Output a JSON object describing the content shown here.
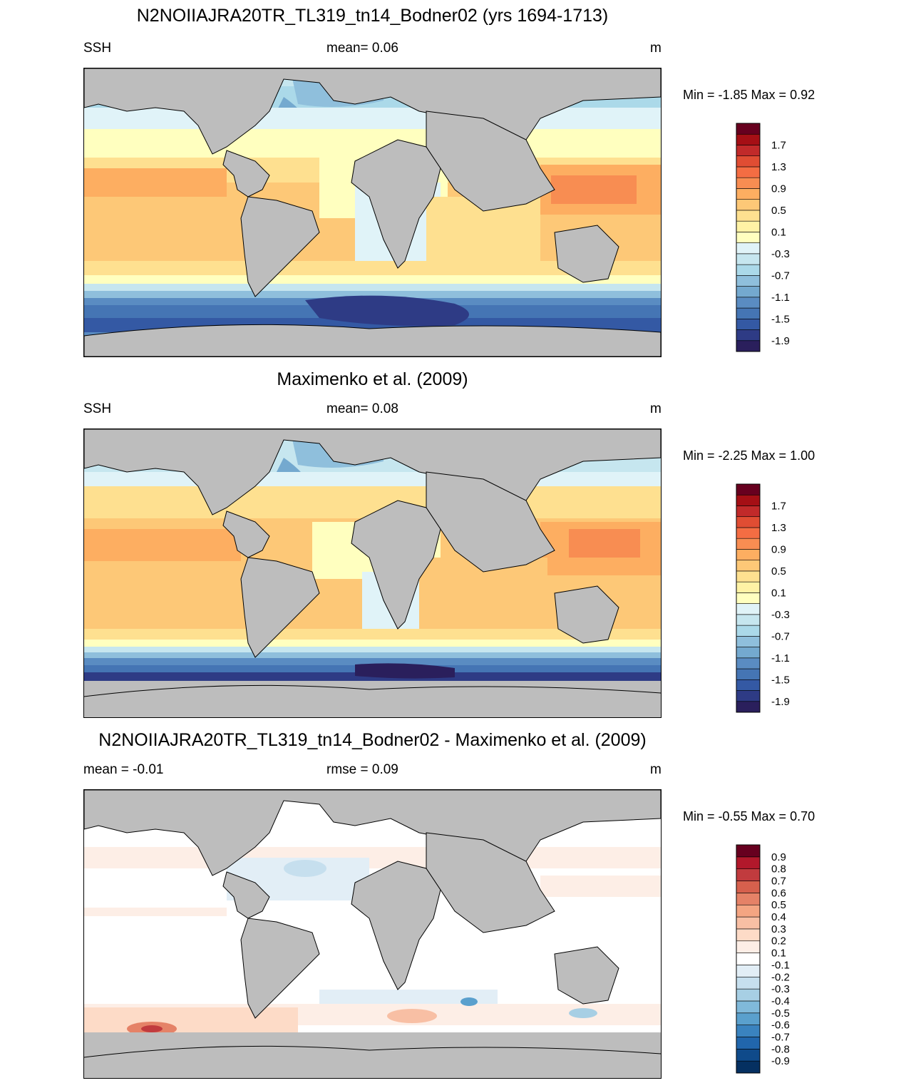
{
  "chart_data": [
    {
      "type": "heatmap",
      "title": "N2NOIIAJRA20TR_TL319_tn14_Bodner02 (yrs 1694-1713)",
      "left_label": "SSH",
      "center_label": "mean=   0.06",
      "right_label": "m",
      "min_max": "Min =  -1.85 Max =   0.92",
      "colorbar": {
        "levels": [
          "-1.9",
          "-1.7",
          "-1.5",
          "-1.3",
          "-1.1",
          "-0.9",
          "-0.7",
          "-0.5",
          "-0.3",
          "-0.1",
          "0.1",
          "0.3",
          "0.5",
          "0.7",
          "0.9",
          "1.1",
          "1.3",
          "1.5",
          "1.7",
          "1.9"
        ],
        "tick_labels": [
          "-1.9",
          "-1.5",
          "-1.1",
          "-0.7",
          "-0.3",
          "0.1",
          "0.5",
          "0.9",
          "1.3",
          "1.7"
        ],
        "colors": [
          "#2a1f5c",
          "#2e3b85",
          "#3459a4",
          "#4575b4",
          "#5a8cc2",
          "#74a9cf",
          "#8fbfdc",
          "#abd9e9",
          "#c6e6ef",
          "#e0f3f8",
          "#ffffbf",
          "#fff2a5",
          "#fee090",
          "#fdc877",
          "#fdae61",
          "#f88d52",
          "#f46d43",
          "#e04d33",
          "#c12a2a",
          "#a50f15",
          "#67001f"
        ]
      }
    },
    {
      "type": "heatmap",
      "title": "Maximenko et al. (2009)",
      "left_label": "SSH",
      "center_label": "mean=   0.08",
      "right_label": "m",
      "min_max": "Min =  -2.25 Max =   1.00",
      "colorbar": {
        "levels": [
          "-1.9",
          "-1.7",
          "-1.5",
          "-1.3",
          "-1.1",
          "-0.9",
          "-0.7",
          "-0.5",
          "-0.3",
          "-0.1",
          "0.1",
          "0.3",
          "0.5",
          "0.7",
          "0.9",
          "1.1",
          "1.3",
          "1.5",
          "1.7",
          "1.9"
        ],
        "tick_labels": [
          "-1.9",
          "-1.5",
          "-1.1",
          "-0.7",
          "-0.3",
          "0.1",
          "0.5",
          "0.9",
          "1.3",
          "1.7"
        ],
        "colors": [
          "#2a1f5c",
          "#2e3b85",
          "#3459a4",
          "#4575b4",
          "#5a8cc2",
          "#74a9cf",
          "#8fbfdc",
          "#abd9e9",
          "#c6e6ef",
          "#e0f3f8",
          "#ffffbf",
          "#fff2a5",
          "#fee090",
          "#fdc877",
          "#fdae61",
          "#f88d52",
          "#f46d43",
          "#e04d33",
          "#c12a2a",
          "#a50f15",
          "#67001f"
        ]
      }
    },
    {
      "type": "heatmap",
      "title": "N2NOIIAJRA20TR_TL319_tn14_Bodner02 - Maximenko et al. (2009)",
      "left_label": "mean =  -0.01",
      "center_label": "rmse =   0.09",
      "right_label": "m",
      "min_max": "Min =  -0.55 Max =   0.70",
      "colorbar": {
        "levels": [
          "-0.9",
          "-0.8",
          "-0.7",
          "-0.6",
          "-0.5",
          "-0.4",
          "-0.3",
          "-0.2",
          "-0.1",
          "0.1",
          "0.2",
          "0.3",
          "0.4",
          "0.5",
          "0.6",
          "0.7",
          "0.8",
          "0.9"
        ],
        "tick_labels": [
          "-0.9",
          "-0.8",
          "-0.7",
          "-0.6",
          "-0.5",
          "-0.4",
          "-0.3",
          "-0.2",
          "-0.1",
          "0.1",
          "0.2",
          "0.3",
          "0.4",
          "0.5",
          "0.6",
          "0.7",
          "0.8",
          "0.9"
        ],
        "colors": [
          "#053061",
          "#0f4a8a",
          "#2166ac",
          "#3a83bf",
          "#5aa0cd",
          "#80b9da",
          "#a7cfe4",
          "#c6dfee",
          "#e2eef6",
          "#ffffff",
          "#fdeee6",
          "#fddbc7",
          "#f8bfa4",
          "#f4a582",
          "#e58267",
          "#d6604d",
          "#c13b3e",
          "#b2182b",
          "#67001f"
        ]
      }
    }
  ]
}
